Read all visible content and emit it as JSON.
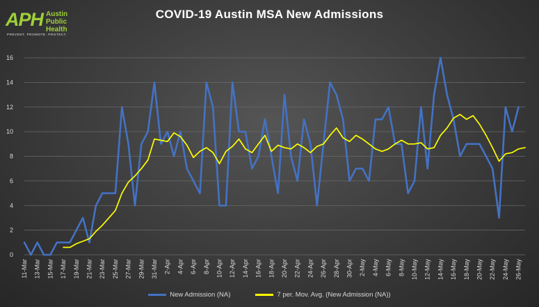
{
  "logo": {
    "mark": "APH",
    "name": "Austin\nPublic\nHealth",
    "tagline": "PREVENT. PROMOTE. PROTECT."
  },
  "chart_data": {
    "type": "line",
    "title": "COVID-19 Austin MSA New Admissions",
    "xlabel": "",
    "ylabel": "",
    "ylim": [
      0,
      16
    ],
    "yticks": [
      0,
      2,
      4,
      6,
      8,
      10,
      12,
      14,
      16
    ],
    "grid": true,
    "legend_position": "bottom",
    "x": [
      "11-Mar",
      "12-Mar",
      "13-Mar",
      "14-Mar",
      "15-Mar",
      "16-Mar",
      "17-Mar",
      "18-Mar",
      "19-Mar",
      "20-Mar",
      "21-Mar",
      "22-Mar",
      "23-Mar",
      "24-Mar",
      "25-Mar",
      "26-Mar",
      "27-Mar",
      "28-Mar",
      "29-Mar",
      "30-Mar",
      "31-Mar",
      "1-Apr",
      "2-Apr",
      "3-Apr",
      "4-Apr",
      "5-Apr",
      "6-Apr",
      "7-Apr",
      "8-Apr",
      "9-Apr",
      "10-Apr",
      "11-Apr",
      "12-Apr",
      "13-Apr",
      "14-Apr",
      "15-Apr",
      "16-Apr",
      "17-Apr",
      "18-Apr",
      "19-Apr",
      "20-Apr",
      "21-Apr",
      "22-Apr",
      "23-Apr",
      "24-Apr",
      "25-Apr",
      "26-Apr",
      "27-Apr",
      "28-Apr",
      "29-Apr",
      "30-Apr",
      "1-May",
      "2-May",
      "3-May",
      "4-May",
      "5-May",
      "6-May",
      "7-May",
      "8-May",
      "9-May",
      "10-May",
      "11-May",
      "12-May",
      "13-May",
      "14-May",
      "15-May",
      "16-May",
      "17-May",
      "18-May",
      "19-May",
      "20-May",
      "21-May",
      "22-May",
      "23-May",
      "24-May",
      "25-May",
      "26-May",
      "27-May"
    ],
    "xtick_labels": [
      "11-Mar",
      "13-Mar",
      "15-Mar",
      "17-Mar",
      "19-Mar",
      "21-Mar",
      "23-Mar",
      "25-Mar",
      "27-Mar",
      "29-Mar",
      "31-Mar",
      "2-Apr",
      "4-Apr",
      "6-Apr",
      "8-Apr",
      "10-Apr",
      "12-Apr",
      "14-Apr",
      "16-Apr",
      "18-Apr",
      "20-Apr",
      "22-Apr",
      "24-Apr",
      "26-Apr",
      "28-Apr",
      "30-Apr",
      "2-May",
      "4-May",
      "6-May",
      "8-May",
      "10-May",
      "12-May",
      "14-May",
      "16-May",
      "18-May",
      "20-May",
      "22-May",
      "24-May",
      "26-May"
    ],
    "series": [
      {
        "name": "New Admission (NA)",
        "color": "#4472c4",
        "values": [
          1,
          0,
          1,
          0,
          0,
          1,
          1,
          1,
          2,
          3,
          1,
          4,
          5,
          5,
          5,
          12,
          9,
          4,
          9,
          10,
          14,
          9,
          10,
          8,
          10,
          7,
          6,
          5,
          14,
          12,
          4,
          4,
          14,
          10,
          10,
          7,
          8,
          11,
          8,
          5,
          13,
          8,
          6,
          11,
          9,
          4,
          9,
          14,
          13,
          11,
          6,
          7,
          7,
          6,
          11,
          11,
          12,
          9,
          9,
          5,
          6,
          12,
          7,
          13,
          16,
          13,
          11,
          8,
          9,
          9,
          9,
          8,
          7,
          3,
          12,
          10,
          12,
          null
        ]
      },
      {
        "name": "7 per. Mov. Avg. (New Admission (NA))",
        "color": "#ffff00",
        "values": [
          null,
          null,
          null,
          null,
          null,
          null,
          0.6,
          0.6,
          0.9,
          1.1,
          1.3,
          1.9,
          2.4,
          3.0,
          3.6,
          5.0,
          5.9,
          6.4,
          7.0,
          7.7,
          9.4,
          9.3,
          9.2,
          9.9,
          9.6,
          8.9,
          7.9,
          8.4,
          8.7,
          8.3,
          7.4,
          8.4,
          8.8,
          9.4,
          8.6,
          8.3,
          9.0,
          9.7,
          8.4,
          8.9,
          8.7,
          8.6,
          9.0,
          8.7,
          8.3,
          8.8,
          9.0,
          9.7,
          10.3,
          9.5,
          9.2,
          9.7,
          9.4,
          9.0,
          8.6,
          8.4,
          8.6,
          9.0,
          9.3,
          9.0,
          9.0,
          9.1,
          8.6,
          8.7,
          9.7,
          10.3,
          11.1,
          11.4,
          11.0,
          11.3,
          10.6,
          9.7,
          8.7,
          7.6,
          8.2,
          8.3,
          8.6,
          8.7
        ]
      }
    ]
  }
}
